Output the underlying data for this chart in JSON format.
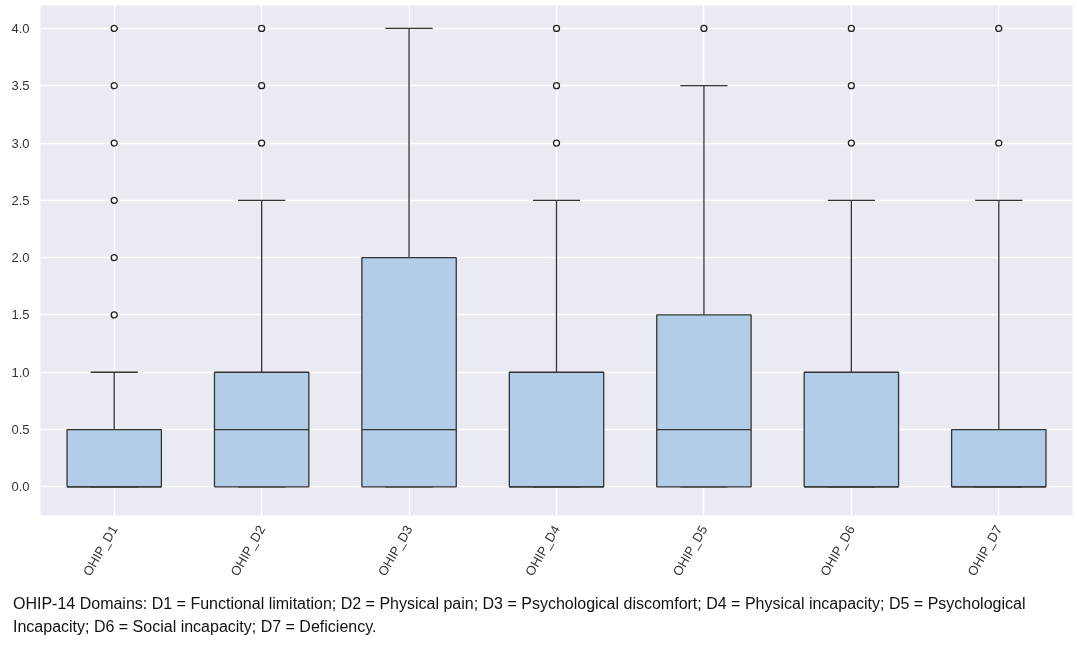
{
  "chart_data": {
    "type": "box",
    "categories": [
      "OHIP_D1",
      "OHIP_D2",
      "OHIP_D3",
      "OHIP_D4",
      "OHIP_D5",
      "OHIP_D6",
      "OHIP_D7"
    ],
    "color": "#b3cde9",
    "boxes": [
      {
        "low": 0,
        "q1": 0,
        "median": 0,
        "q3": 0.5,
        "high": 1.0,
        "outliers": [
          1.5,
          2.0,
          2.5,
          3.0,
          3.5,
          4.0
        ]
      },
      {
        "low": 0,
        "q1": 0,
        "median": 0.5,
        "q3": 1.0,
        "high": 2.5,
        "outliers": [
          3.0,
          3.5,
          4.0
        ]
      },
      {
        "low": 0,
        "q1": 0,
        "median": 0.5,
        "q3": 2.0,
        "high": 4.0
      },
      {
        "low": 0,
        "q1": 0,
        "median": 0,
        "q3": 1.0,
        "high": 2.5,
        "outliers": [
          3.0,
          3.5,
          4.0
        ]
      },
      {
        "low": 0,
        "q1": 0,
        "median": 0.5,
        "q3": 1.5,
        "high": 3.5,
        "outliers": [
          4.0
        ]
      },
      {
        "low": 0,
        "q1": 0,
        "median": 0,
        "q3": 1.0,
        "high": 2.5,
        "outliers": [
          3.0,
          3.5,
          4.0
        ]
      },
      {
        "low": 0,
        "q1": 0,
        "median": 0,
        "q3": 0.5,
        "high": 2.5,
        "outliers": [
          3.0,
          4.0
        ]
      }
    ],
    "ylim": [
      -0.25,
      4.2
    ],
    "yticks": [
      {
        "value": 0,
        "label": "0.0"
      },
      {
        "value": 0.5,
        "label": "0.5"
      },
      {
        "value": 1,
        "label": "1.0"
      },
      {
        "value": 1.5,
        "label": "1.5"
      },
      {
        "value": 2,
        "label": "2.0"
      },
      {
        "value": 2.5,
        "label": "2.5"
      },
      {
        "value": 3,
        "label": "3.0"
      },
      {
        "value": 3.5,
        "label": "3.5"
      },
      {
        "value": 4,
        "label": "4.0"
      }
    ],
    "grid": true,
    "annotations": [
      "OHIP-14 Domains: D1 = Functional limitation; D2 = Physical pain; D3 = Psychological discomfort; D4 = Physical incapacity; D5 = Psychological Incapacity;  D6 = Social incapacity; D7 = Deficiency."
    ]
  }
}
